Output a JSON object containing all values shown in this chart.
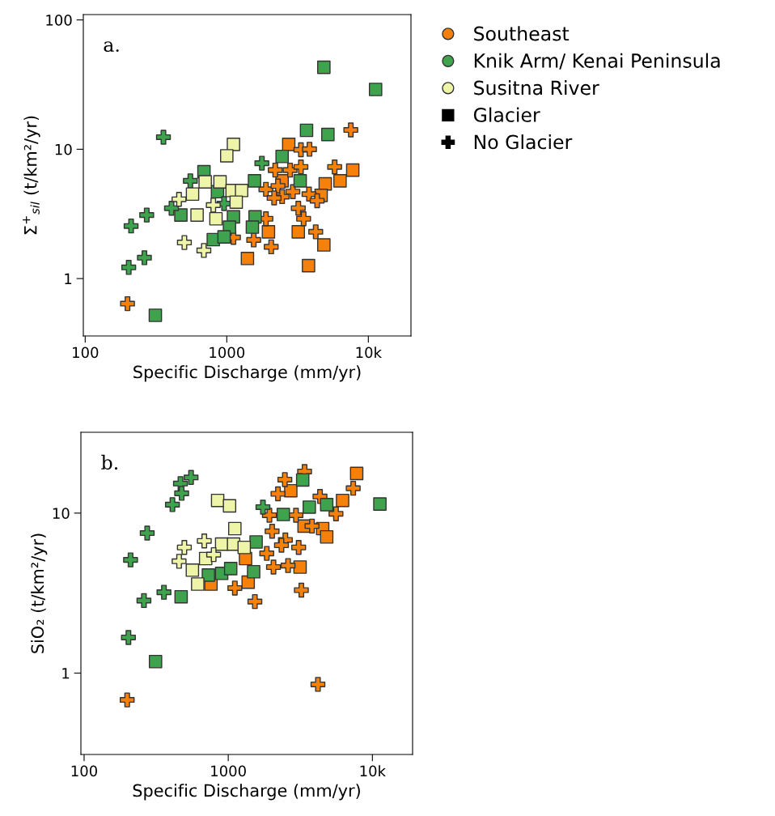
{
  "chart_data": [
    {
      "type": "scatter",
      "xlabel": "Specific Discharge (mm/yr)",
      "ylabel": "Σ$^{+}$$_{sil}$ (t/km²/yr)",
      "log": "xy",
      "xlim": [
        97,
        20000
      ],
      "ylim": [
        0.36,
        110
      ],
      "xticks": [
        100,
        1000,
        {
          "value": 10000,
          "label": "10k"
        }
      ],
      "yticks": [
        1,
        10,
        100
      ],
      "grid": false,
      "legend": "right",
      "annotations": [
        "a."
      ],
      "series": [
        {
          "name": "Southeast",
          "color": "#f5800a",
          "marker": "circle"
        },
        {
          "name": "Knik Arm/ Kenai Peninsula",
          "color": "#3fa34d",
          "marker": "circle"
        },
        {
          "name": "Susitna River",
          "color": "#eef4a8",
          "marker": "circle"
        },
        {
          "name": "Glacier",
          "color": "#000000",
          "marker": "square"
        },
        {
          "name": "No Glacier",
          "color": "#000000",
          "marker": "cross"
        },
        {
          "color": "#f5800a",
          "marker": "square",
          "x": [
            2740,
            7760,
            6310,
            4960,
            1970,
            3200,
            4850,
            1400,
            3780,
            4640,
            2460
          ],
          "values": [
            10.9,
            6.9,
            5.7,
            5.4,
            2.3,
            2.3,
            1.82,
            1.43,
            1.26,
            4.4,
            5.7
          ]
        },
        {
          "color": "#f5800a",
          "marker": "cross",
          "x": [
            7520,
            3340,
            3840,
            5780,
            2200,
            2800,
            3340,
            1890,
            2300,
            2930,
            3810,
            4350,
            3200,
            3490,
            4250,
            2060,
            1550,
            1115,
            199,
            2460,
            2160,
            1890
          ],
          "values": [
            14.1,
            9.9,
            10.0,
            7.3,
            6.9,
            6.9,
            7.3,
            4.9,
            5.2,
            4.7,
            4.5,
            4.0,
            3.5,
            2.9,
            2.3,
            1.76,
            1.99,
            2.08,
            0.64,
            4.3,
            4.2,
            2.9
          ]
        },
        {
          "color": "#3fa34d",
          "marker": "square",
          "x": [
            4850,
            11250,
            3660,
            5180,
            2460,
            1570,
            3300,
            690,
            860,
            474,
            1115,
            1045,
            803,
            957,
            1585,
            1517,
            313
          ],
          "values": [
            43,
            29,
            14,
            13,
            8.8,
            5.7,
            5.7,
            6.7,
            4.7,
            3.1,
            3.0,
            2.5,
            2.0,
            2.1,
            3.0,
            2.5,
            0.52
          ]
        },
        {
          "color": "#3fa34d",
          "marker": "cross",
          "x": [
            357,
            1770,
            553,
            272,
            211,
            407,
            262,
            203,
            957
          ],
          "values": [
            12.4,
            7.8,
            5.7,
            3.1,
            2.55,
            3.5,
            1.45,
            1.22,
            3.8
          ]
        },
        {
          "color": "#eef4a8",
          "marker": "square",
          "x": [
            1115,
            1000,
            704,
            896,
            573,
            1091,
            1273,
            1166,
            617,
            839
          ],
          "values": [
            10.9,
            8.9,
            5.6,
            5.6,
            4.5,
            4.8,
            4.8,
            3.9,
            3.1,
            2.9
          ]
        },
        {
          "color": "#eef4a8",
          "marker": "cross",
          "x": [
            460,
            803,
            502,
            689
          ],
          "values": [
            4.1,
            3.7,
            1.9,
            1.65
          ]
        }
      ]
    },
    {
      "type": "scatter",
      "xlabel": "Specific Discharge (mm/yr)",
      "ylabel": "SiO₂ (t/km²/yr)",
      "log": "xy",
      "xlim": [
        95,
        19000
      ],
      "ylim": [
        0.31,
        32
      ],
      "xticks": [
        100,
        1000,
        {
          "value": 10000,
          "label": "10k"
        }
      ],
      "yticks": [
        1,
        10
      ],
      "grid": false,
      "annotations": [
        "b."
      ],
      "series": [
        {
          "color": "#f5800a",
          "marker": "square",
          "x": [
            7780,
            6210,
            4520,
            4820,
            3150,
            1375,
            759,
            2715,
            1318,
            3357
          ],
          "values": [
            17.7,
            12.0,
            8.0,
            7.1,
            4.6,
            3.7,
            3.6,
            13.8,
            5.2,
            8.3
          ]
        },
        {
          "color": "#f5800a",
          "marker": "cross",
          "x": [
            3385,
            2470,
            7360,
            2213,
            4330,
            5590,
            2950,
            2015,
            2490,
            3080,
            2340,
            1850,
            2060,
            2600,
            1111,
            1530,
            3215,
            4190,
            199,
            3810,
            1930
          ],
          "values": [
            18.2,
            16.2,
            14.3,
            13.2,
            12.7,
            9.9,
            9.7,
            7.7,
            6.8,
            6.1,
            6.3,
            5.6,
            4.6,
            4.7,
            3.4,
            2.8,
            3.3,
            0.85,
            0.68,
            8.3,
            9.7
          ]
        },
        {
          "color": "#3fa34d",
          "marker": "square",
          "x": [
            3285,
            3650,
            4820,
            11270,
            2410,
            1560,
            1500,
            900,
            1040,
            728,
            471,
            313
          ],
          "values": [
            16.1,
            10.9,
            11.3,
            11.4,
            9.8,
            6.6,
            4.3,
            4.2,
            4.5,
            4.1,
            3.0,
            1.18
          ]
        },
        {
          "color": "#3fa34d",
          "marker": "cross",
          "x": [
            552,
            466,
            475,
            410,
            274,
            210,
            1740,
            358,
            260,
            203
          ],
          "values": [
            16.7,
            15.3,
            13.3,
            11.3,
            7.5,
            5.1,
            10.9,
            3.2,
            2.84,
            1.67
          ]
        },
        {
          "color": "#eef4a8",
          "marker": "square",
          "x": [
            844,
            1021,
            1111,
            900,
            1089,
            1290,
            697,
            564,
            614
          ],
          "values": [
            12.0,
            11.1,
            8.0,
            6.4,
            6.4,
            6.1,
            5.2,
            4.4,
            3.6
          ]
        },
        {
          "color": "#eef4a8",
          "marker": "cross",
          "x": [
            496,
            682,
            456,
            792
          ],
          "values": [
            6.1,
            6.7,
            5.0,
            5.5
          ]
        }
      ]
    }
  ]
}
